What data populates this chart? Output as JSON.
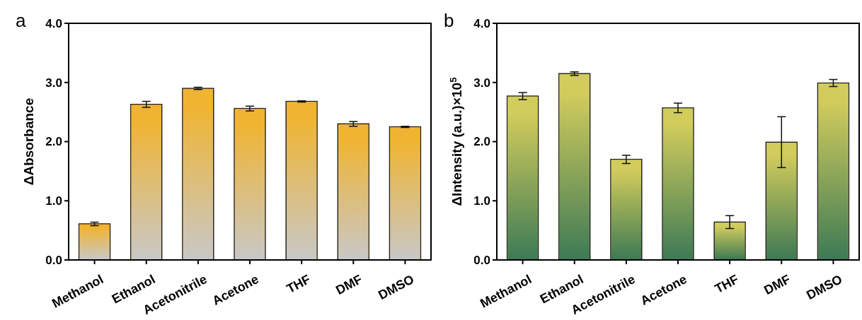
{
  "chart_data": [
    {
      "type": "bar",
      "title": "a",
      "ylabel": "ΔAbsorbance",
      "categories": [
        "Methanol",
        "Ethanol",
        "Acetonitrile",
        "Acetone",
        "THF",
        "DMF",
        "DMSO"
      ],
      "series": [
        {
          "color": "#f0b432",
          "values": [
            0.61,
            2.63,
            2.9,
            2.56,
            2.68,
            2.3,
            2.25
          ],
          "errors": [
            0.03,
            0.05,
            0.02,
            0.04,
            0.01,
            0.04,
            0.01
          ]
        }
      ],
      "ylim": [
        0,
        4
      ],
      "yticks": [
        {
          "value": 0,
          "label": "0.0"
        },
        {
          "value": 1,
          "label": "1.0"
        },
        {
          "value": 2,
          "label": "2.0"
        },
        {
          "value": 3,
          "label": "3.0"
        },
        {
          "value": 4,
          "label": "4.0"
        }
      ],
      "grid": false
    },
    {
      "type": "bar",
      "title": "b",
      "ylabel": "ΔIntensity (a.u.)×10$^{5}$",
      "categories": [
        "Methanol",
        "Ethanol",
        "Acetonitrile",
        "Acetone",
        "THF",
        "DMF",
        "DMSO"
      ],
      "series": [
        {
          "color": "#d2cc5c",
          "values": [
            2.77,
            3.15,
            1.7,
            2.57,
            0.64,
            1.99,
            2.99
          ],
          "errors": [
            0.06,
            0.03,
            0.07,
            0.08,
            0.11,
            0.43,
            0.06
          ]
        }
      ],
      "ylim": [
        0,
        4
      ],
      "yticks": [
        {
          "value": 0,
          "label": "0.0"
        },
        {
          "value": 1,
          "label": "1.0"
        },
        {
          "value": 2,
          "label": "2.0"
        },
        {
          "value": 3,
          "label": "3.0"
        },
        {
          "value": 4,
          "label": "4.0"
        }
      ],
      "grid": false
    }
  ]
}
